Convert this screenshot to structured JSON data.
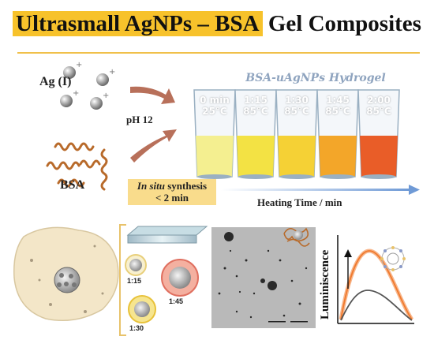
{
  "title": {
    "highlight": "Ultrasmall AgNPs – BSA",
    "rest": " Gel Composites"
  },
  "labels": {
    "ag": "Ag (I)",
    "bsa": "BSA",
    "ph": "pH 12",
    "hydrogel": "BSA-uAgNPs Hydrogel",
    "insitu_italic": "In situ",
    "insitu_rest": " synthesis",
    "insitu_time": "< 2 min",
    "heating": "Heating Time / min",
    "luminiscence": "Luminiscence"
  },
  "vials": [
    {
      "time": "0 min",
      "temp": "25°C",
      "color": "#f3ee8a"
    },
    {
      "time": "1:15",
      "temp": "85°C",
      "color": "#f2e03a"
    },
    {
      "time": "1:30",
      "temp": "85°C",
      "color": "#f4cf2a"
    },
    {
      "time": "1:45",
      "temp": "85°C",
      "color": "#f2a11e"
    },
    {
      "time": "2:00",
      "temp": "85°C",
      "color": "#e8541c"
    }
  ],
  "ratios": {
    "r1": "1:15",
    "r2": "1:30",
    "r3": "1:45"
  },
  "colors": {
    "accent": "#f7c22b",
    "arrow": "#b8705a",
    "axis": "#6f9ad6",
    "curve_orange": "#f07a2e",
    "curve_grey": "#555555"
  }
}
